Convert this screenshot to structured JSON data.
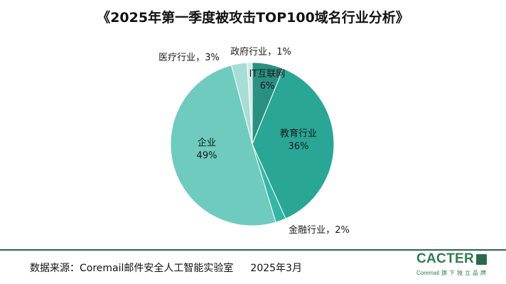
{
  "chart_data": {
    "type": "pie",
    "title": "《2025年第一季度被攻击TOP100域名行业分析》",
    "categories": [
      "IT互联网",
      "教育行业",
      "金融行业",
      "企业",
      "医疗行业",
      "政府行业"
    ],
    "values": [
      6,
      36,
      2,
      49,
      3,
      1
    ],
    "data_labels": [
      "6%",
      "36%",
      "2%",
      "49%",
      "3%",
      "1%"
    ],
    "label_separator": "，",
    "colors": [
      "#2a9182",
      "#2aa696",
      "#36b5a7",
      "#6ecbbe",
      "#a6ddd6",
      "#cfebe7"
    ]
  },
  "footer": {
    "source": "数据来源：Coremail邮件安全人工智能实验室",
    "date": "2025年3月"
  },
  "logo": {
    "wordmark": "CACTER",
    "brand": "Coremail",
    "tagline": "旗下独立品牌"
  },
  "colors": {
    "divider": "#2f6150",
    "brand_green": "#2e7d4f",
    "brand_mark": "#2b6a48"
  }
}
